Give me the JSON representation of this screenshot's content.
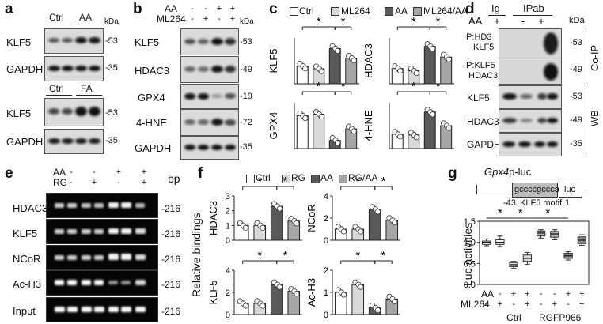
{
  "a": {
    "label": "a",
    "kda": "kDa",
    "top": {
      "groups": [
        "Ctrl",
        "AA"
      ],
      "rows": [
        {
          "name": "KLF5",
          "kda": "-53"
        },
        {
          "name": "GAPDH",
          "kda": "-35"
        }
      ]
    },
    "bottom": {
      "groups": [
        "Ctrl",
        "FA"
      ],
      "rows": [
        {
          "name": "KLF5",
          "kda": "-53"
        },
        {
          "name": "GAPDH",
          "kda": "-35"
        }
      ]
    }
  },
  "b": {
    "label": "b",
    "kda": "kDa",
    "conditions": [
      {
        "name": "AA",
        "signs": [
          "-",
          "-",
          "+",
          "+"
        ]
      },
      {
        "name": "ML264",
        "signs": [
          "-",
          "+",
          "-",
          "+"
        ]
      }
    ],
    "rows": [
      {
        "name": "KLF5",
        "kda": "-53"
      },
      {
        "name": "HDAC3",
        "kda": "-49"
      },
      {
        "name": "GPX4",
        "kda": "-19"
      },
      {
        "name": "4-HNE",
        "kda": "-72"
      },
      {
        "name": "GAPDH",
        "kda": "-35"
      }
    ]
  },
  "c": {
    "label": "c",
    "legend": [
      "Ctrl",
      "ML264",
      "AA",
      "ML264/AA"
    ],
    "colors": [
      "#ffffff",
      "#d9d9d9",
      "#595959",
      "#a6a6a6"
    ],
    "star": "*",
    "chart_data": [
      {
        "type": "bar",
        "ylabel": "KLF5",
        "categories": [
          "Ctrl",
          "ML264",
          "AA",
          "ML264/AA"
        ],
        "values": [
          1.0,
          0.85,
          2.0,
          1.45
        ],
        "ylim": [
          0,
          2.6
        ]
      },
      {
        "type": "bar",
        "ylabel": "HDAC3",
        "categories": [
          "Ctrl",
          "ML264",
          "AA",
          "ML264/AA"
        ],
        "values": [
          1.0,
          0.85,
          2.45,
          1.75
        ],
        "ylim": [
          0,
          3.0
        ]
      },
      {
        "type": "bar",
        "ylabel": "GPX4",
        "categories": [
          "Ctrl",
          "ML264",
          "AA",
          "ML264/AA"
        ],
        "values": [
          1.0,
          1.05,
          0.25,
          0.6
        ],
        "ylim": [
          0,
          1.4
        ]
      },
      {
        "type": "bar",
        "ylabel": "4-HNE",
        "categories": [
          "Ctrl",
          "ML264",
          "AA",
          "ML264/AA"
        ],
        "values": [
          1.0,
          0.95,
          2.55,
          1.6
        ],
        "ylim": [
          0,
          3.2
        ]
      }
    ]
  },
  "d": {
    "label": "d",
    "header": {
      "aa": "AA",
      "ig": "Ig",
      "ipab": "IPab",
      "kda": "kDa",
      "signs": [
        "+",
        "-",
        "+"
      ]
    },
    "coip_label": "Co-IP",
    "wb_label": "WB",
    "coip_rows": [
      {
        "line1": "IP:HD3",
        "line2": "KLF5",
        "kda": "-53"
      },
      {
        "line1": "IP:KLF5",
        "line2": "HDAC3",
        "kda": "-49"
      }
    ],
    "wb_rows": [
      {
        "name": "KLF5",
        "kda": "-53"
      },
      {
        "name": "HDAC3",
        "kda": "-49"
      },
      {
        "name": "GAPDH",
        "kda": "-35"
      }
    ]
  },
  "e": {
    "label": "e",
    "bp": "bp",
    "conditions": [
      {
        "name": "AA",
        "signs": [
          "-",
          "-",
          "+",
          "+"
        ]
      },
      {
        "name": "RG",
        "signs": [
          "-",
          "+",
          "-",
          "+"
        ]
      }
    ],
    "rows": [
      {
        "name": "HDAC3",
        "bp": "-216"
      },
      {
        "name": "KLF5",
        "bp": "-216"
      },
      {
        "name": "NCoR",
        "bp": "-216"
      },
      {
        "name": "Ac-H3",
        "bp": "-216"
      },
      {
        "name": "Input",
        "bp": "-216"
      }
    ]
  },
  "f": {
    "label": "f",
    "legend": [
      "Ctrl",
      "RG",
      "AA",
      "RG/AA"
    ],
    "colors": [
      "#ffffff",
      "#d9d9d9",
      "#595959",
      "#a6a6a6"
    ],
    "ylabel": "Relative bindings",
    "star": "*",
    "chart_data": [
      {
        "type": "bar",
        "ylabel": "HDAC3",
        "categories": [
          "Ctrl",
          "RG",
          "AA",
          "RG/AA"
        ],
        "values": [
          1.0,
          1.0,
          2.3,
          1.3
        ],
        "ylim": [
          0,
          3
        ],
        "yticks": [
          0,
          1,
          2,
          3
        ]
      },
      {
        "type": "bar",
        "ylabel": "NCoR",
        "categories": [
          "Ctrl",
          "RG",
          "AA",
          "RG/AA"
        ],
        "values": [
          1.0,
          1.0,
          2.8,
          1.8
        ],
        "ylim": [
          0,
          4
        ],
        "yticks": [
          0,
          2,
          4
        ]
      },
      {
        "type": "bar",
        "ylabel": "KLF5",
        "categories": [
          "Ctrl",
          "RG",
          "AA",
          "RG/AA"
        ],
        "values": [
          1.0,
          1.0,
          2.7,
          2.1
        ],
        "ylim": [
          0,
          4
        ],
        "yticks": [
          0,
          2,
          4
        ]
      },
      {
        "type": "bar",
        "ylabel": "Ac-H3",
        "categories": [
          "Ctrl",
          "RG",
          "AA",
          "RG/AA"
        ],
        "values": [
          1.0,
          1.35,
          0.3,
          0.7
        ],
        "ylim": [
          0,
          2
        ],
        "yticks": [
          0,
          1,
          2
        ]
      }
    ]
  },
  "g": {
    "label": "g",
    "title_italic": "Gpx4",
    "title_rest": "p-luc",
    "motif_box": "gccccgccca",
    "luc_box": "luc",
    "pos_left": "-43",
    "motif_label": "KLF5 motif",
    "pos_right": "1",
    "star": "*",
    "conditions": [
      {
        "name": "AA",
        "signs": [
          "-",
          "-",
          "+",
          "+",
          "-",
          "-",
          "+",
          "+"
        ]
      },
      {
        "name": "ML264",
        "signs": [
          "-",
          "+",
          "-",
          "+",
          "-",
          "+",
          "-",
          "+"
        ]
      }
    ],
    "groups": [
      "Ctrl",
      "RGFP966"
    ],
    "chart_data": {
      "type": "box",
      "ylabel": "Luc activities",
      "ylim": [
        0,
        1.5
      ],
      "yticks": [
        0,
        0.5,
        1.0,
        1.5
      ],
      "categories": [
        "Ctrl",
        "Ctrl+ML264",
        "Ctrl+AA",
        "Ctrl+AA+ML264",
        "RGFP966",
        "RGFP966+ML264",
        "RGFP966+AA",
        "RGFP966+AA+ML264"
      ],
      "values": [
        1.0,
        1.0,
        0.47,
        0.62,
        1.22,
        1.2,
        0.68,
        1.05
      ],
      "q1": [
        0.95,
        0.95,
        0.42,
        0.55,
        1.15,
        1.12,
        0.62,
        0.97
      ],
      "q3": [
        1.03,
        1.06,
        0.52,
        0.7,
        1.27,
        1.26,
        0.74,
        1.13
      ],
      "min": [
        0.92,
        0.9,
        0.38,
        0.48,
        1.1,
        1.06,
        0.58,
        0.93
      ],
      "max": [
        1.08,
        1.15,
        0.55,
        0.76,
        1.3,
        1.3,
        0.78,
        1.18
      ],
      "colors": [
        "#ffffff",
        "#ffffff",
        "#d9d9d9",
        "#d9d9d9",
        "#b0b0b0",
        "#b0b0b0",
        "#888888",
        "#888888"
      ]
    }
  }
}
